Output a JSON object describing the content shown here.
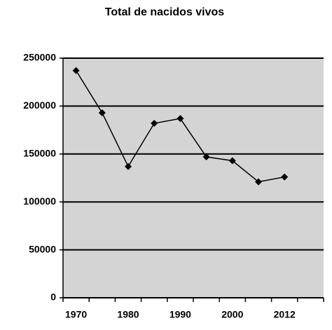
{
  "chart_data": {
    "type": "line",
    "title": "Total de nacidos vivos",
    "categories": [
      "1970",
      null,
      "1980",
      null,
      "1990",
      null,
      "2000",
      null,
      "2012",
      null
    ],
    "series": [
      {
        "color": "#000000",
        "values": [
          237000,
          193000,
          137000,
          182000,
          187000,
          147000,
          143000,
          121000,
          126000,
          null
        ]
      }
    ],
    "ylim": [
      0,
      250000
    ],
    "yticks": [
      0,
      50000,
      100000,
      150000,
      200000,
      250000
    ],
    "grid": true,
    "plot_background": "#d4d4d4"
  }
}
